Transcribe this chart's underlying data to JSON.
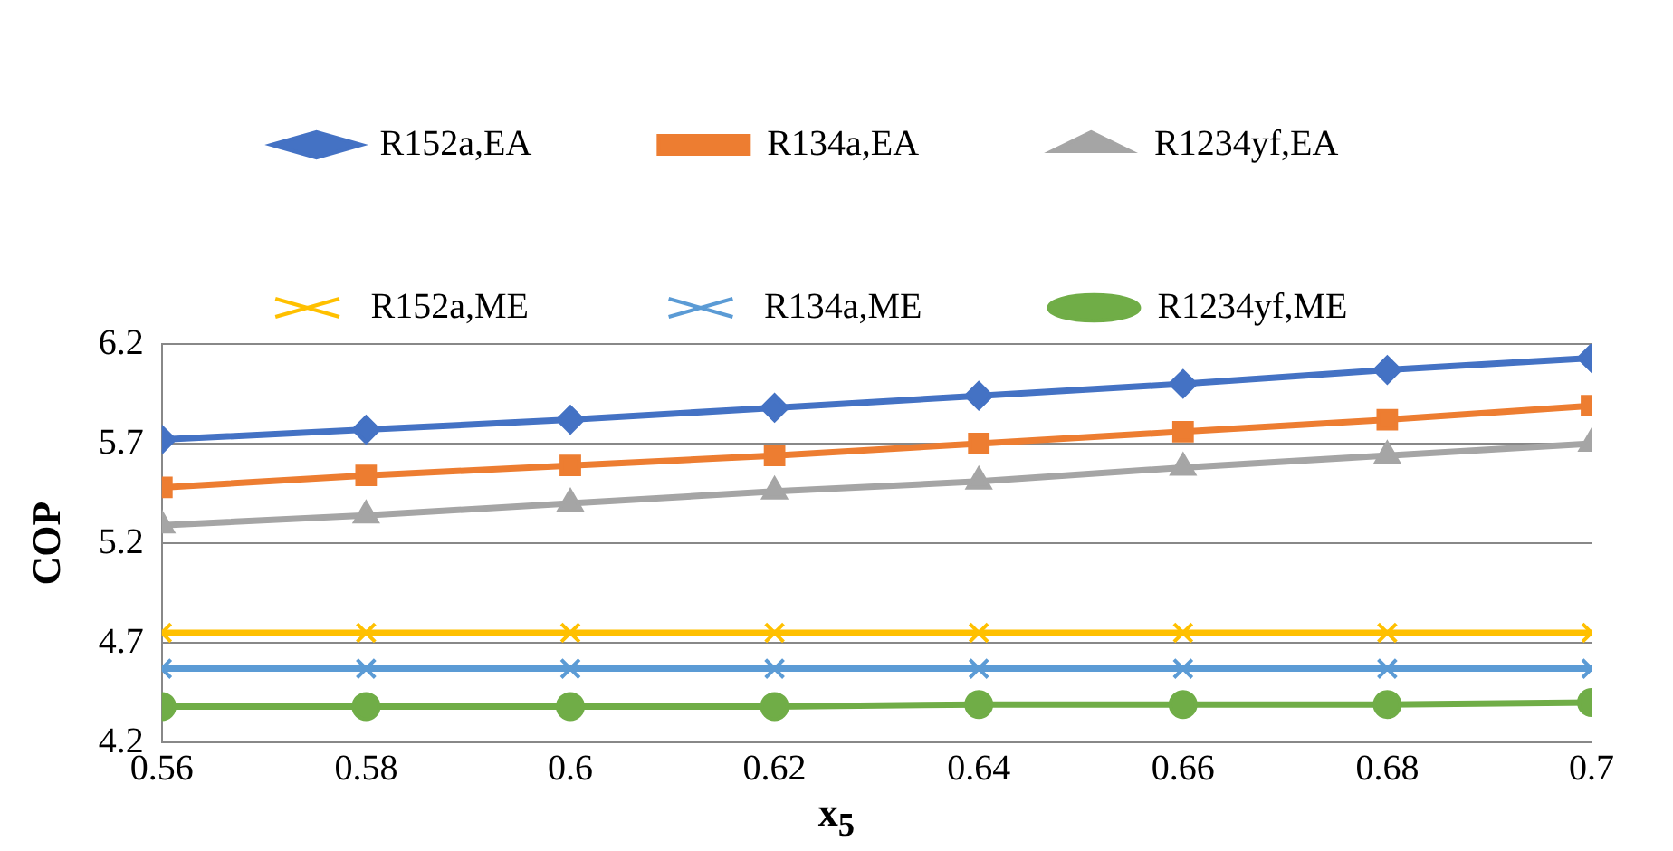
{
  "chart_data": {
    "type": "line",
    "xlabel": "x$_{5}$",
    "ylabel": "COP",
    "x": [
      0.56,
      0.58,
      0.6,
      0.62,
      0.64,
      0.66,
      0.68,
      0.7
    ],
    "series": [
      {
        "name": "R152a,EA",
        "color": "#4472c4",
        "marker": "diamond",
        "values": [
          5.72,
          5.77,
          5.82,
          5.88,
          5.94,
          6.0,
          6.07,
          6.13
        ]
      },
      {
        "name": "R134a,EA",
        "color": "#ed7d31",
        "marker": "square",
        "values": [
          5.48,
          5.54,
          5.59,
          5.64,
          5.7,
          5.76,
          5.82,
          5.89
        ]
      },
      {
        "name": "R1234yf,EA",
        "color": "#a5a5a5",
        "marker": "triangle",
        "values": [
          5.29,
          5.34,
          5.4,
          5.46,
          5.51,
          5.58,
          5.64,
          5.7
        ]
      },
      {
        "name": "R152a,ME",
        "color": "#ffc000",
        "marker": "cross",
        "values": [
          4.75,
          4.75,
          4.75,
          4.75,
          4.75,
          4.75,
          4.75,
          4.75
        ]
      },
      {
        "name": "R134a,ME",
        "color": "#5b9bd5",
        "marker": "cross",
        "values": [
          4.57,
          4.57,
          4.57,
          4.57,
          4.57,
          4.57,
          4.57,
          4.57
        ]
      },
      {
        "name": "R1234yf,ME",
        "color": "#70ad47",
        "marker": "circle",
        "values": [
          4.38,
          4.38,
          4.38,
          4.38,
          4.39,
          4.39,
          4.39,
          4.4
        ]
      }
    ],
    "xlim": [
      0.56,
      0.7
    ],
    "xticks": [
      0.56,
      0.58,
      0.6,
      0.62,
      0.64,
      0.66,
      0.68,
      0.7
    ],
    "ylim": [
      4.2,
      6.2
    ],
    "yticks": [
      4.2,
      4.7,
      5.2,
      5.7,
      6.2
    ],
    "grid": "y",
    "legend": "top"
  }
}
